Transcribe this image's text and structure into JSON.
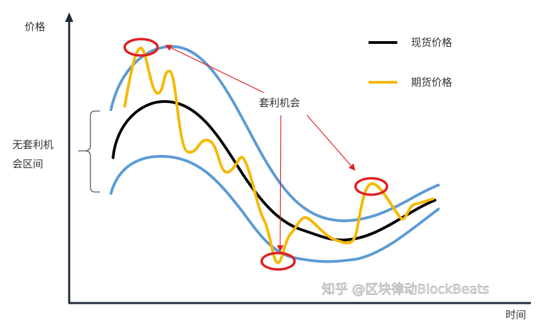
{
  "axes": {
    "y_label": "价格",
    "x_label": "时间"
  },
  "legend": [
    {
      "label": "现货价格",
      "color": "#000000"
    },
    {
      "label": "期货价格",
      "color": "#f5b800"
    }
  ],
  "band_color": "#5b9bd5",
  "annotation": {
    "label": "套利机会",
    "color": "#e02020"
  },
  "band_label": {
    "line1": "无套利机",
    "line2": "会区间"
  },
  "watermark": "知乎 @区块律动BlockBeats"
}
